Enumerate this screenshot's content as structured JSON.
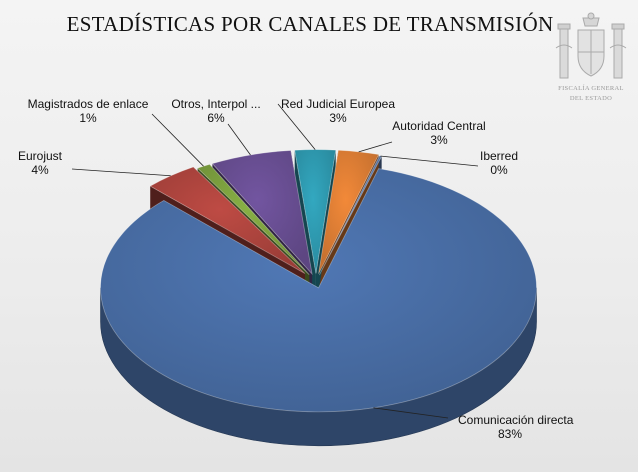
{
  "title": "ESTADÍSTICAS POR CANALES DE TRANSMISIÓN",
  "emblem": {
    "line1": "FISCALÍA GENERAL",
    "line2": "DEL ESTADO"
  },
  "chart_data": {
    "type": "pie",
    "title": "ESTADÍSTICAS POR CANALES DE TRANSMISIÓN",
    "legend": "none",
    "three_d": true,
    "slices": [
      {
        "label": "Comunicación directa",
        "value": 83,
        "display": "83%",
        "color": "#4a6fa8"
      },
      {
        "label": "Eurojust",
        "value": 4,
        "display": "4%",
        "color": "#b0453f"
      },
      {
        "label": "Magistrados de enlace",
        "value": 1,
        "display": "1%",
        "color": "#7ea340"
      },
      {
        "label": "Otros, Interpol ...",
        "value": 6,
        "display": "6%",
        "color": "#6a4f94"
      },
      {
        "label": "Red Judicial Europea",
        "value": 3,
        "display": "3%",
        "color": "#2f9cb2"
      },
      {
        "label": "Autoridad Central",
        "value": 3,
        "display": "3%",
        "color": "#e07f35"
      },
      {
        "label": "Iberred",
        "value": 0,
        "display": "0%",
        "color": "#5d7fb5"
      }
    ]
  }
}
